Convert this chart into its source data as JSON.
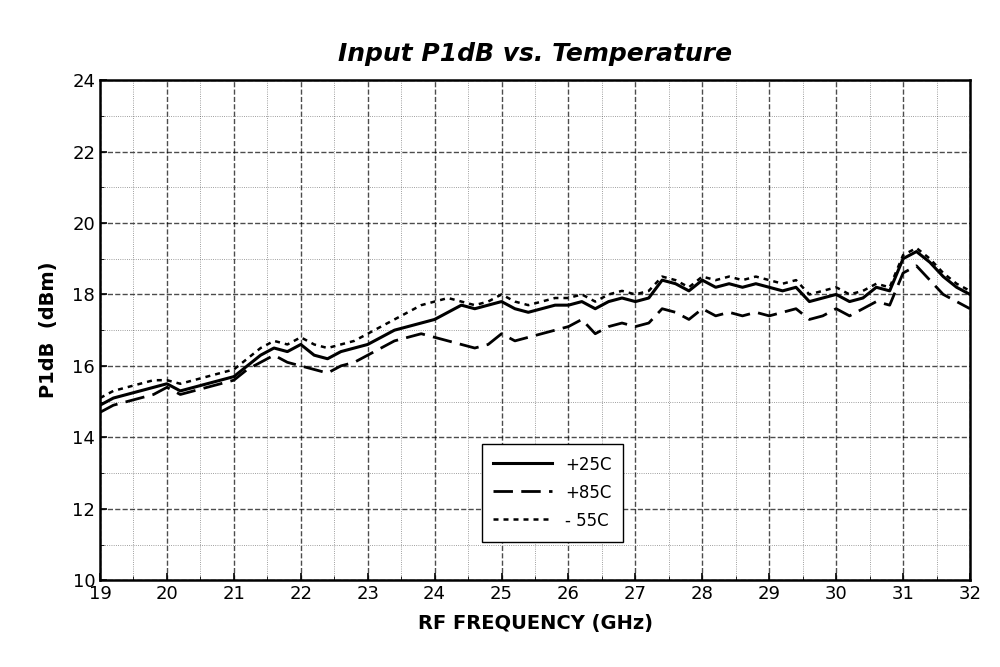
{
  "title": "Input P1dB vs. Temperature",
  "xlabel": "RF FREQUENCY (GHz)",
  "ylabel": "P1dB  (dBm)",
  "xlim": [
    19,
    32
  ],
  "ylim": [
    10,
    24
  ],
  "xticks": [
    19,
    20,
    21,
    22,
    23,
    24,
    25,
    26,
    27,
    28,
    29,
    30,
    31,
    32
  ],
  "yticks": [
    10,
    12,
    14,
    16,
    18,
    20,
    22,
    24
  ],
  "background_color": "#ffffff",
  "legend_labels": [
    "+25C",
    "+85C",
    "- 55C"
  ],
  "freq_25C": [
    19.0,
    19.2,
    19.4,
    19.6,
    19.8,
    20.0,
    20.2,
    20.4,
    20.6,
    20.8,
    21.0,
    21.2,
    21.4,
    21.6,
    21.8,
    22.0,
    22.2,
    22.4,
    22.6,
    22.8,
    23.0,
    23.2,
    23.4,
    23.6,
    23.8,
    24.0,
    24.2,
    24.4,
    24.6,
    24.8,
    25.0,
    25.2,
    25.4,
    25.6,
    25.8,
    26.0,
    26.2,
    26.4,
    26.6,
    26.8,
    27.0,
    27.2,
    27.4,
    27.6,
    27.8,
    28.0,
    28.2,
    28.4,
    28.6,
    28.8,
    29.0,
    29.2,
    29.4,
    29.6,
    29.8,
    30.0,
    30.2,
    30.4,
    30.6,
    30.8,
    31.0,
    31.2,
    31.4,
    31.6,
    31.8,
    32.0
  ],
  "val_25C": [
    14.9,
    15.1,
    15.2,
    15.3,
    15.4,
    15.5,
    15.3,
    15.4,
    15.5,
    15.6,
    15.7,
    16.0,
    16.3,
    16.5,
    16.4,
    16.6,
    16.3,
    16.2,
    16.4,
    16.5,
    16.6,
    16.8,
    17.0,
    17.1,
    17.2,
    17.3,
    17.5,
    17.7,
    17.6,
    17.7,
    17.8,
    17.6,
    17.5,
    17.6,
    17.7,
    17.7,
    17.8,
    17.6,
    17.8,
    17.9,
    17.8,
    17.9,
    18.4,
    18.3,
    18.1,
    18.4,
    18.2,
    18.3,
    18.2,
    18.3,
    18.2,
    18.1,
    18.2,
    17.8,
    17.9,
    18.0,
    17.8,
    17.9,
    18.2,
    18.1,
    19.0,
    19.2,
    18.9,
    18.5,
    18.2,
    18.0
  ],
  "freq_85C": [
    19.0,
    19.2,
    19.4,
    19.6,
    19.8,
    20.0,
    20.2,
    20.4,
    20.6,
    20.8,
    21.0,
    21.2,
    21.4,
    21.6,
    21.8,
    22.0,
    22.2,
    22.4,
    22.6,
    22.8,
    23.0,
    23.2,
    23.4,
    23.6,
    23.8,
    24.0,
    24.2,
    24.4,
    24.6,
    24.8,
    25.0,
    25.2,
    25.4,
    25.6,
    25.8,
    26.0,
    26.2,
    26.4,
    26.6,
    26.8,
    27.0,
    27.2,
    27.4,
    27.6,
    27.8,
    28.0,
    28.2,
    28.4,
    28.6,
    28.8,
    29.0,
    29.2,
    29.4,
    29.6,
    29.8,
    30.0,
    30.2,
    30.4,
    30.6,
    30.8,
    31.0,
    31.2,
    31.4,
    31.6,
    31.8,
    32.0
  ],
  "val_85C": [
    14.7,
    14.9,
    15.0,
    15.1,
    15.2,
    15.4,
    15.2,
    15.3,
    15.4,
    15.5,
    15.6,
    15.9,
    16.1,
    16.3,
    16.1,
    16.0,
    15.9,
    15.8,
    16.0,
    16.1,
    16.3,
    16.5,
    16.7,
    16.8,
    16.9,
    16.8,
    16.7,
    16.6,
    16.5,
    16.6,
    16.9,
    16.7,
    16.8,
    16.9,
    17.0,
    17.1,
    17.3,
    16.9,
    17.1,
    17.2,
    17.1,
    17.2,
    17.6,
    17.5,
    17.3,
    17.6,
    17.4,
    17.5,
    17.4,
    17.5,
    17.4,
    17.5,
    17.6,
    17.3,
    17.4,
    17.6,
    17.4,
    17.6,
    17.8,
    17.7,
    18.6,
    18.8,
    18.4,
    18.0,
    17.8,
    17.6
  ],
  "freq_n55C": [
    19.0,
    19.2,
    19.4,
    19.6,
    19.8,
    20.0,
    20.2,
    20.4,
    20.6,
    20.8,
    21.0,
    21.2,
    21.4,
    21.6,
    21.8,
    22.0,
    22.2,
    22.4,
    22.6,
    22.8,
    23.0,
    23.2,
    23.4,
    23.6,
    23.8,
    24.0,
    24.2,
    24.4,
    24.6,
    24.8,
    25.0,
    25.2,
    25.4,
    25.6,
    25.8,
    26.0,
    26.2,
    26.4,
    26.6,
    26.8,
    27.0,
    27.2,
    27.4,
    27.6,
    27.8,
    28.0,
    28.2,
    28.4,
    28.6,
    28.8,
    29.0,
    29.2,
    29.4,
    29.6,
    29.8,
    30.0,
    30.2,
    30.4,
    30.6,
    30.8,
    31.0,
    31.2,
    31.4,
    31.6,
    31.8,
    32.0
  ],
  "val_n55C": [
    15.1,
    15.3,
    15.4,
    15.5,
    15.6,
    15.6,
    15.5,
    15.6,
    15.7,
    15.8,
    15.9,
    16.2,
    16.5,
    16.7,
    16.6,
    16.8,
    16.6,
    16.5,
    16.6,
    16.7,
    16.9,
    17.1,
    17.3,
    17.5,
    17.7,
    17.8,
    17.9,
    17.8,
    17.7,
    17.8,
    18.0,
    17.8,
    17.7,
    17.8,
    17.9,
    17.9,
    18.0,
    17.8,
    18.0,
    18.1,
    18.0,
    18.1,
    18.5,
    18.4,
    18.2,
    18.5,
    18.4,
    18.5,
    18.4,
    18.5,
    18.4,
    18.3,
    18.4,
    18.0,
    18.1,
    18.2,
    18.0,
    18.1,
    18.3,
    18.2,
    19.1,
    19.3,
    19.0,
    18.6,
    18.3,
    18.1
  ]
}
